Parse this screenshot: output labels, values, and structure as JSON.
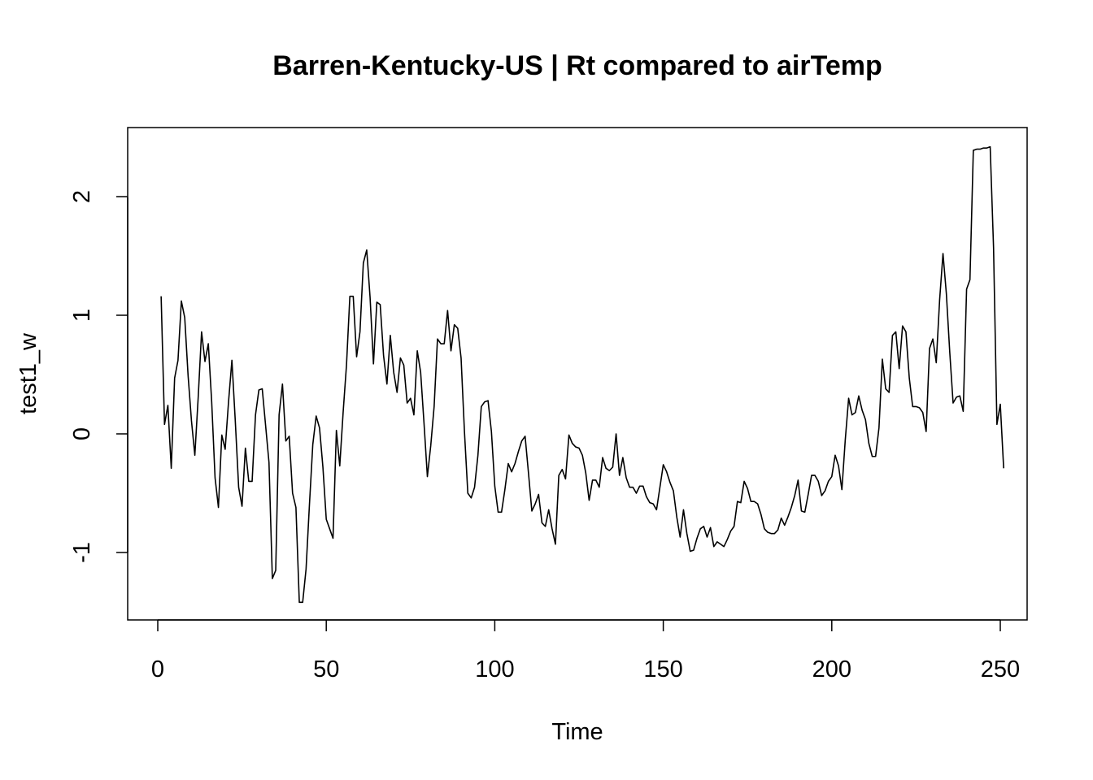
{
  "chart_data": {
    "type": "line",
    "title": "Barren-Kentucky-US | Rt compared to airTemp",
    "xlabel": "Time",
    "ylabel": "test1_w",
    "xlim": [
      1,
      248
    ],
    "ylim": [
      -1.42,
      2.42
    ],
    "x_ticks": [
      0,
      50,
      100,
      150,
      200,
      250
    ],
    "y_ticks": [
      -1,
      0,
      1,
      2
    ],
    "x_tick_labels": [
      "0",
      "50",
      "100",
      "150",
      "200",
      "250"
    ],
    "y_tick_labels": [
      "-1",
      "0",
      "1",
      "2"
    ],
    "grid": false,
    "legend": "none",
    "color": "#000000",
    "series": [
      {
        "x_start": 1,
        "x_step": 1,
        "values": [
          1.16,
          0.08,
          0.24,
          -0.29,
          0.47,
          0.62,
          1.12,
          0.98,
          0.49,
          0.11,
          -0.18,
          0.31,
          0.86,
          0.61,
          0.76,
          0.27,
          -0.37,
          -0.62,
          -0.01,
          -0.13,
          0.27,
          0.62,
          0.11,
          -0.45,
          -0.61,
          -0.12,
          -0.4,
          -0.4,
          0.16,
          0.37,
          0.38,
          0.07,
          -0.24,
          -1.22,
          -1.15,
          0.16,
          0.42,
          -0.06,
          -0.02,
          -0.5,
          -0.62,
          -1.42,
          -1.42,
          -1.14,
          -0.6,
          -0.09,
          0.15,
          0.05,
          -0.28,
          -0.72,
          -0.8,
          -0.88,
          0.03,
          -0.27,
          0.18,
          0.58,
          1.16,
          1.16,
          0.65,
          0.86,
          1.44,
          1.55,
          1.15,
          0.59,
          1.11,
          1.09,
          0.66,
          0.42,
          0.83,
          0.52,
          0.35,
          0.64,
          0.58,
          0.26,
          0.3,
          0.16,
          0.7,
          0.52,
          0.09,
          -0.36,
          -0.1,
          0.23,
          0.8,
          0.76,
          0.76,
          1.04,
          0.7,
          0.92,
          0.89,
          0.64,
          0.02,
          -0.5,
          -0.54,
          -0.45,
          -0.18,
          0.23,
          0.27,
          0.28,
          0.02,
          -0.44,
          -0.66,
          -0.66,
          -0.47,
          -0.25,
          -0.32,
          -0.25,
          -0.15,
          -0.06,
          -0.02,
          -0.33,
          -0.65,
          -0.59,
          -0.51,
          -0.75,
          -0.78,
          -0.64,
          -0.8,
          -0.93,
          -0.35,
          -0.3,
          -0.38,
          -0.01,
          -0.08,
          -0.11,
          -0.12,
          -0.18,
          -0.33,
          -0.56,
          -0.39,
          -0.39,
          -0.45,
          -0.2,
          -0.29,
          -0.31,
          -0.28,
          0.0,
          -0.35,
          -0.2,
          -0.37,
          -0.45,
          -0.45,
          -0.5,
          -0.44,
          -0.44,
          -0.53,
          -0.58,
          -0.59,
          -0.64,
          -0.45,
          -0.26,
          -0.32,
          -0.41,
          -0.48,
          -0.7,
          -0.87,
          -0.64,
          -0.84,
          -0.99,
          -0.98,
          -0.88,
          -0.8,
          -0.78,
          -0.87,
          -0.79,
          -0.95,
          -0.91,
          -0.93,
          -0.95,
          -0.89,
          -0.82,
          -0.78,
          -0.57,
          -0.58,
          -0.4,
          -0.46,
          -0.57,
          -0.57,
          -0.59,
          -0.68,
          -0.8,
          -0.83,
          -0.84,
          -0.84,
          -0.81,
          -0.71,
          -0.77,
          -0.7,
          -0.62,
          -0.52,
          -0.39,
          -0.65,
          -0.66,
          -0.51,
          -0.35,
          -0.35,
          -0.4,
          -0.52,
          -0.48,
          -0.4,
          -0.36,
          -0.18,
          -0.27,
          -0.47,
          -0.05,
          0.3,
          0.16,
          0.18,
          0.32,
          0.2,
          0.12,
          -0.08,
          -0.19,
          -0.19,
          0.05,
          0.63,
          0.38,
          0.35,
          0.83,
          0.86,
          0.55,
          0.91,
          0.86,
          0.47,
          0.23,
          0.23,
          0.22,
          0.18,
          0.02,
          0.72,
          0.8,
          0.6,
          1.13,
          1.52,
          1.18,
          0.69,
          0.26,
          0.31,
          0.32,
          0.19,
          1.22,
          1.3,
          2.39,
          2.4,
          2.4,
          2.41,
          2.41,
          2.42,
          1.57,
          0.08,
          0.25,
          -0.29
        ]
      }
    ]
  }
}
